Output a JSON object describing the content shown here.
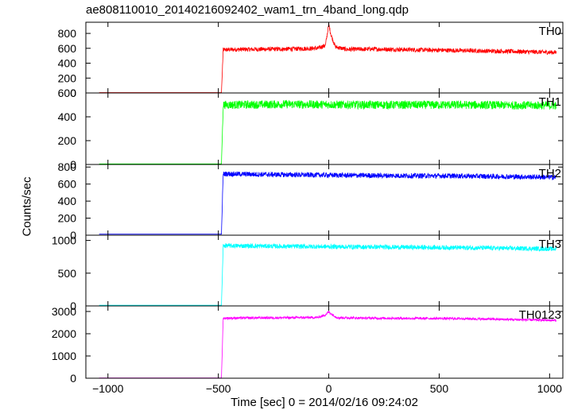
{
  "chart_data": {
    "type": "line",
    "title": "ae808110010_20140216092402_wam1_trn_4band_long.qdp",
    "ylabel": "Counts/sec",
    "xlabel": "Time [sec] 0 = 2014/02/16 09:24:02",
    "xlim": [
      -1100,
      1060
    ],
    "xticks": [
      -1000,
      -500,
      0,
      500,
      1000
    ],
    "xtick_labels": [
      "−1000",
      "−500",
      "0",
      "500",
      "1000"
    ],
    "grid": false,
    "panels": [
      {
        "name": "TH0",
        "color": "#ff0000",
        "ylim": [
          0,
          950
        ],
        "yticks": [
          0,
          200,
          400,
          600,
          800
        ],
        "points": [
          [
            -1040,
            5
          ],
          [
            -486,
            5
          ],
          [
            -478,
            580
          ],
          [
            -400,
            585
          ],
          [
            -200,
            590
          ],
          [
            -50,
            600
          ],
          [
            -15,
            640
          ],
          [
            0,
            920
          ],
          [
            10,
            780
          ],
          [
            30,
            620
          ],
          [
            80,
            585
          ],
          [
            200,
            590
          ],
          [
            400,
            580
          ],
          [
            600,
            570
          ],
          [
            800,
            560
          ],
          [
            1030,
            545
          ]
        ],
        "noise": 30
      },
      {
        "name": "TH1",
        "color": "#00ff00",
        "ylim": [
          0,
          600
        ],
        "yticks": [
          0,
          200,
          400,
          600
        ],
        "points": [
          [
            -1040,
            5
          ],
          [
            -486,
            5
          ],
          [
            -478,
            500
          ],
          [
            -200,
            505
          ],
          [
            200,
            500
          ],
          [
            600,
            500
          ],
          [
            1030,
            495
          ]
        ],
        "noise": 35
      },
      {
        "name": "TH2",
        "color": "#0000ff",
        "ylim": [
          0,
          830
        ],
        "yticks": [
          0,
          200,
          400,
          600,
          800
        ],
        "points": [
          [
            -1040,
            12
          ],
          [
            -486,
            12
          ],
          [
            -478,
            720
          ],
          [
            -200,
            710
          ],
          [
            200,
            700
          ],
          [
            600,
            695
          ],
          [
            1030,
            680
          ]
        ],
        "noise": 30
      },
      {
        "name": "TH3",
        "color": "#00ffff",
        "ylim": [
          0,
          1080
        ],
        "yticks": [
          0,
          500,
          1000
        ],
        "points": [
          [
            -1040,
            10
          ],
          [
            -486,
            10
          ],
          [
            -478,
            920
          ],
          [
            -200,
            910
          ],
          [
            200,
            900
          ],
          [
            600,
            890
          ],
          [
            1030,
            870
          ]
        ],
        "noise": 35
      },
      {
        "name": "TH0123",
        "color": "#ff00ff",
        "ylim": [
          0,
          3250
        ],
        "yticks": [
          0,
          1000,
          2000,
          3000
        ],
        "points": [
          [
            -1040,
            15
          ],
          [
            -486,
            15
          ],
          [
            -478,
            2700
          ],
          [
            -200,
            2720
          ],
          [
            -50,
            2730
          ],
          [
            -15,
            2850
          ],
          [
            0,
            2980
          ],
          [
            15,
            2870
          ],
          [
            40,
            2720
          ],
          [
            200,
            2700
          ],
          [
            600,
            2680
          ],
          [
            1030,
            2600
          ]
        ],
        "noise": 55
      }
    ]
  }
}
